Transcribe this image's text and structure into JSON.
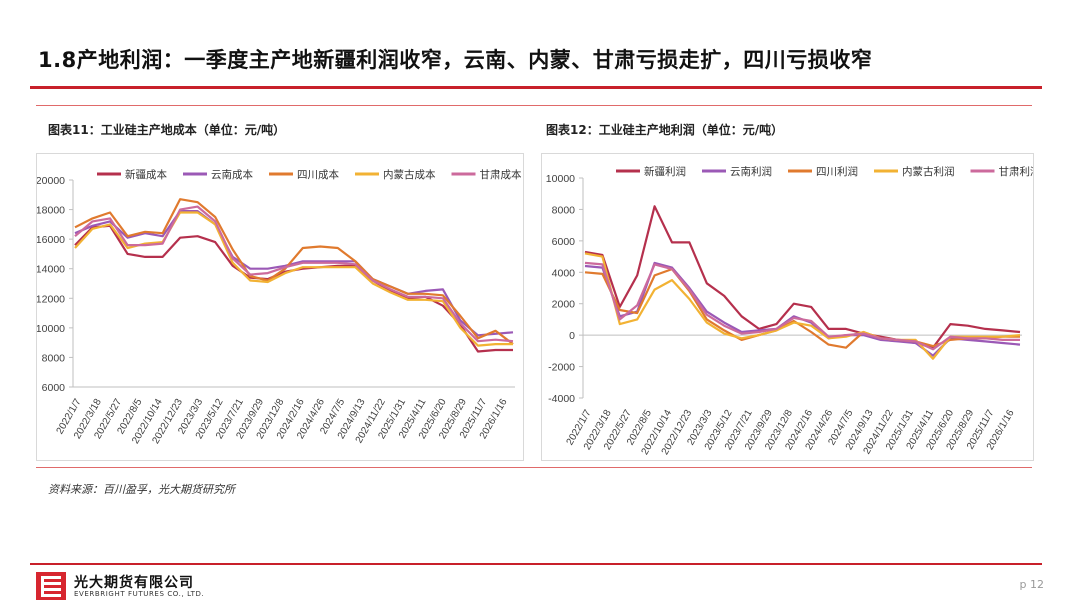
{
  "slide": {
    "title": "1.8产地利润：一季度主产地新疆利润收窄，云南、内蒙、甘肃亏损走扩，四川亏损收窄",
    "source": "资料来源：百川盈孚，光大期货研究所",
    "page": "p 12"
  },
  "logo": {
    "cn": "光大期货有限公司",
    "en": "EVERBRIGHT FUTURES CO., LTD."
  },
  "charts": {
    "left": {
      "caption": "图表11：工业硅主产地成本（单位：元/吨）"
    },
    "right": {
      "caption": "图表12：工业硅主产地利润（单位：元/吨）"
    }
  },
  "chart_data": [
    {
      "type": "line",
      "title": "图表11：工业硅主产地成本（单位：元/吨）",
      "ylim": [
        6000,
        20000
      ],
      "yticks": [
        6000,
        8000,
        10000,
        12000,
        14000,
        16000,
        18000,
        20000
      ],
      "x_tick_labels": [
        "2022/1/7",
        "2022/3/18",
        "2022/5/27",
        "2022/8/5",
        "2022/10/14",
        "2022/12/23",
        "2023/3/3",
        "2023/5/12",
        "2023/7/21",
        "2023/9/29",
        "2023/12/8",
        "2024/2/16",
        "2024/4/26",
        "2024/7/5",
        "2024/9/13",
        "2024/11/22",
        "2025/1/31",
        "2025/4/11",
        "2025/6/20",
        "2025/8/29",
        "2025/11/7",
        "2026/1/16"
      ],
      "legend_position": "top",
      "grid": false,
      "series": [
        {
          "name": "新疆成本",
          "color": "#b5304d",
          "values": [
            15600,
            16800,
            16900,
            15000,
            14800,
            14800,
            16100,
            16200,
            15800,
            14200,
            13400,
            13300,
            13800,
            14000,
            14100,
            14200,
            14200,
            13200,
            12500,
            12000,
            12100,
            11500,
            10200,
            8400,
            8500,
            8500
          ]
        },
        {
          "name": "云南成本",
          "color": "#9b59b6",
          "values": [
            16400,
            16900,
            17200,
            16100,
            16400,
            16200,
            17900,
            17900,
            17000,
            14800,
            14000,
            14000,
            14200,
            14500,
            14500,
            14500,
            14500,
            13300,
            12800,
            12300,
            12500,
            12600,
            10500,
            9500,
            9600,
            9700
          ]
        },
        {
          "name": "四川成本",
          "color": "#e07a2e",
          "values": [
            16800,
            17400,
            17800,
            16200,
            16500,
            16400,
            18700,
            18500,
            17500,
            15300,
            13500,
            13200,
            14000,
            15400,
            15500,
            15400,
            14500,
            13300,
            12800,
            12300,
            12300,
            12200,
            10800,
            9300,
            9800,
            8900
          ]
        },
        {
          "name": "内蒙古成本",
          "color": "#f2b233",
          "values": [
            15400,
            16700,
            17000,
            15400,
            15700,
            15800,
            17800,
            17800,
            17000,
            14400,
            13200,
            13100,
            13700,
            14100,
            14100,
            14100,
            14100,
            13000,
            12400,
            11900,
            11900,
            11800,
            10000,
            8800,
            8900,
            8900
          ]
        },
        {
          "name": "甘肃成本",
          "color": "#cc6a9c",
          "values": [
            16200,
            17200,
            17400,
            15600,
            15600,
            15700,
            18000,
            18200,
            17200,
            14700,
            13600,
            13700,
            14100,
            14400,
            14400,
            14400,
            14300,
            13200,
            12600,
            12100,
            12100,
            12000,
            10300,
            9100,
            9200,
            9100
          ]
        }
      ]
    },
    {
      "type": "line",
      "title": "图表12：工业硅主产地利润（单位：元/吨）",
      "ylim": [
        -4000,
        10000
      ],
      "yticks": [
        -4000,
        -2000,
        0,
        2000,
        4000,
        6000,
        8000,
        10000
      ],
      "x_tick_labels": [
        "2022/1/7",
        "2022/3/18",
        "2022/5/27",
        "2022/8/5",
        "2022/10/14",
        "2022/12/23",
        "2023/3/3",
        "2023/5/12",
        "2023/7/21",
        "2023/9/29",
        "2023/12/8",
        "2024/2/16",
        "2024/4/26",
        "2024/7/5",
        "2024/9/13",
        "2024/11/22",
        "2025/1/31",
        "2025/4/11",
        "2025/6/20",
        "2025/8/29",
        "2025/11/7",
        "2026/1/16"
      ],
      "legend_position": "top",
      "grid": false,
      "series": [
        {
          "name": "新疆利润",
          "color": "#b5304d",
          "values": [
            5300,
            5100,
            1800,
            3800,
            8200,
            5900,
            5900,
            3300,
            2500,
            1200,
            400,
            700,
            2000,
            1800,
            400,
            400,
            100,
            -100,
            -300,
            -500,
            -800,
            700,
            600,
            400,
            300,
            200
          ]
        },
        {
          "name": "云南利润",
          "color": "#9b59b6",
          "values": [
            4400,
            4300,
            1200,
            1500,
            4600,
            4300,
            3000,
            1500,
            800,
            200,
            300,
            400,
            1200,
            800,
            -200,
            0,
            0,
            -300,
            -400,
            -500,
            -1300,
            -200,
            -300,
            -400,
            -500,
            -600
          ]
        },
        {
          "name": "四川利润",
          "color": "#e07a2e",
          "values": [
            4000,
            3900,
            1600,
            1400,
            3800,
            4200,
            2800,
            1000,
            300,
            -300,
            0,
            300,
            900,
            200,
            -600,
            -800,
            200,
            -200,
            -300,
            -400,
            -700,
            -300,
            -200,
            -200,
            -100,
            -100
          ]
        },
        {
          "name": "内蒙古利润",
          "color": "#f2b233",
          "values": [
            5200,
            5000,
            700,
            1000,
            2900,
            3500,
            2300,
            800,
            100,
            -200,
            0,
            300,
            800,
            600,
            -200,
            -100,
            200,
            -200,
            -300,
            -300,
            -1500,
            -100,
            -100,
            -100,
            -100,
            0
          ]
        },
        {
          "name": "甘肃利润",
          "color": "#cc6a9c",
          "values": [
            4600,
            4500,
            1000,
            1900,
            4500,
            4200,
            2900,
            1300,
            600,
            100,
            200,
            400,
            1100,
            900,
            -100,
            0,
            100,
            -200,
            -300,
            -400,
            -900,
            -100,
            -200,
            -200,
            -300,
            -300
          ]
        }
      ]
    }
  ]
}
